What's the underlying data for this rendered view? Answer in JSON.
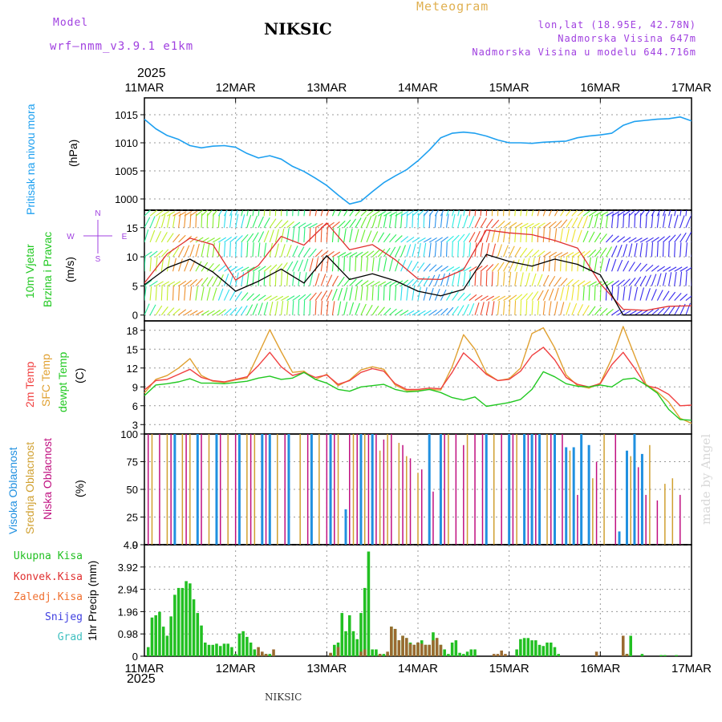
{
  "header": {
    "model_label": "Model",
    "model_name": "wrf–nmm_v3.9.1  e1km",
    "city": "NIKSIC",
    "title": "Meteogram",
    "lonlat": "lon,lat (18.95E, 42.78N)",
    "elevation": "Nadmorska Visina 647m",
    "model_elevation": "Nadmorska Visina u modelu 644.716m",
    "year": "2025",
    "footer_city": "NIKSIC",
    "signature": "made by Angel"
  },
  "colors": {
    "pressure": "#1ea0f0",
    "wind_speed": "#000000",
    "gust": "#e03030",
    "temp2m": "#f04040",
    "sfc_temp": "#e0a030",
    "dewpoint": "#20c820",
    "high_cloud": "#2090e0",
    "mid_cloud": "#d0a030",
    "low_cloud": "#c01080",
    "total_precip": "#22c022",
    "conv_precip": "#e03030",
    "frozen": "#f07030",
    "snow": "#4040e0",
    "hail": "#40c0c0",
    "header_purple": "#a040e0",
    "title_gold": "#e0b050"
  },
  "chart_data": [
    {
      "type": "line",
      "panel": "pressure",
      "labels": [
        "Pritisak na nivou mora",
        "(hPa)"
      ],
      "x_ticks": [
        "11MAR",
        "12MAR",
        "13MAR",
        "14MAR",
        "15MAR",
        "16MAR",
        "17MAR"
      ],
      "x": [
        0,
        3,
        6,
        9,
        12,
        15,
        18,
        21,
        24,
        27,
        30,
        33,
        36,
        39,
        42,
        45,
        48,
        51,
        54,
        57,
        60,
        63,
        66,
        69,
        72,
        75,
        78,
        81,
        84,
        87,
        90,
        93,
        96,
        99,
        102,
        105,
        108,
        111,
        114,
        117,
        120,
        123,
        126,
        129,
        132,
        135,
        138,
        141,
        144
      ],
      "x_unit": "hours from 11MAR 00UTC",
      "y_ticks": [
        1000,
        1005,
        1010,
        1015
      ],
      "ylim": [
        998,
        1018
      ],
      "series": [
        {
          "name": "Pritisak na nivou mora",
          "values": [
            1014.2,
            1012.5,
            1011.3,
            1010.6,
            1009.5,
            1009.1,
            1009.4,
            1009.5,
            1009.2,
            1008.1,
            1007.3,
            1007.7,
            1007.1,
            1005.8,
            1004.9,
            1003.7,
            1002.4,
            1000.7,
            999.1,
            999.6,
            1001.3,
            1002.9,
            1004.1,
            1005.2,
            1006.8,
            1008.7,
            1010.9,
            1011.7,
            1011.9,
            1011.7,
            1011.2,
            1010.5,
            1010.0,
            1010.0,
            1009.9,
            1010.1,
            1010.2,
            1010.3,
            1010.9,
            1011.2,
            1011.4,
            1011.7,
            1013.1,
            1013.8,
            1014.0,
            1014.2,
            1014.3,
            1014.6,
            1013.9
          ]
        }
      ]
    },
    {
      "type": "line",
      "panel": "wind",
      "labels": [
        "10m Vjetar",
        "Brzina i Pravac",
        "(m/s)"
      ],
      "direction_legend": [
        "N",
        "W",
        "E",
        "S"
      ],
      "x": [
        0,
        6,
        12,
        18,
        24,
        30,
        36,
        42,
        48,
        54,
        60,
        66,
        72,
        78,
        84,
        90,
        96,
        102,
        108,
        114,
        120,
        126,
        132,
        138,
        144
      ],
      "x_unit": "hours from 11MAR 00UTC",
      "y_ticks": [
        0,
        5,
        10,
        15
      ],
      "ylim": [
        -1,
        18
      ],
      "series": [
        {
          "name": "10m Vjetar Brzina",
          "values": [
            5.2,
            8.1,
            9.6,
            7.4,
            4.1,
            5.8,
            7.9,
            5.5,
            10.2,
            6.1,
            7.1,
            5.9,
            4.1,
            3.3,
            4.4,
            10.4,
            9.2,
            8.4,
            9.6,
            8.7,
            6.9,
            null,
            null,
            null,
            null
          ]
        },
        {
          "name": "Udari",
          "values": [
            5.5,
            10.5,
            13.2,
            12.1,
            6.0,
            8.5,
            13.5,
            12.0,
            15.8,
            11.2,
            12.1,
            9.5,
            6.2,
            6.1,
            7.8,
            14.6,
            14.1,
            13.8,
            12.8,
            11.5,
            5.4,
            1.0,
            0.8,
            1.5,
            1.6
          ]
        }
      ]
    },
    {
      "type": "line",
      "panel": "temperature",
      "labels": [
        "2m Temp",
        "SFC Temp",
        "dewpt Temp",
        "(C)"
      ],
      "x": [
        0,
        3,
        6,
        9,
        12,
        15,
        18,
        21,
        24,
        27,
        30,
        33,
        36,
        39,
        42,
        45,
        48,
        51,
        54,
        57,
        60,
        63,
        66,
        69,
        72,
        75,
        78,
        81,
        84,
        87,
        90,
        93,
        96,
        99,
        102,
        105,
        108,
        111,
        114,
        117,
        120,
        123,
        126,
        129,
        132,
        135,
        138,
        141,
        144
      ],
      "x_unit": "hours from 11MAR 00UTC",
      "y_ticks": [
        3,
        6,
        9,
        12,
        15,
        18
      ],
      "ylim": [
        1.5,
        19.5
      ],
      "series": [
        {
          "name": "2m Temp",
          "values": [
            8.5,
            10.0,
            10.2,
            11.0,
            11.8,
            10.5,
            10.0,
            9.8,
            10.2,
            10.6,
            12.4,
            14.5,
            12.2,
            10.8,
            11.3,
            10.5,
            10.9,
            9.4,
            10.0,
            11.3,
            11.9,
            11.5,
            9.5,
            8.6,
            8.6,
            8.8,
            8.7,
            11.3,
            14.4,
            12.8,
            11.0,
            10.0,
            10.2,
            11.5,
            14.0,
            15.3,
            13.3,
            10.5,
            9.4,
            9.0,
            9.5,
            12.5,
            14.5,
            12.0,
            9.2,
            8.8,
            7.8,
            6.0,
            6.1
          ]
        },
        {
          "name": "SFC Temp",
          "values": [
            8.0,
            10.2,
            10.8,
            12.0,
            13.5,
            10.8,
            9.9,
            9.7,
            10.1,
            10.4,
            14.2,
            18.1,
            14.6,
            11.3,
            11.5,
            10.2,
            11.0,
            9.2,
            10.1,
            11.7,
            12.2,
            11.8,
            9.3,
            8.4,
            8.4,
            8.6,
            8.5,
            12.2,
            17.3,
            15.0,
            11.2,
            10.0,
            10.3,
            12.0,
            17.5,
            18.4,
            15.2,
            10.9,
            9.2,
            8.8,
            9.6,
            13.5,
            18.6,
            14.0,
            9.4,
            8.2,
            6.6,
            4.0,
            3.2
          ]
        },
        {
          "name": "dewpt Temp",
          "values": [
            7.6,
            9.3,
            9.5,
            9.8,
            10.3,
            9.6,
            9.6,
            9.5,
            9.7,
            9.9,
            10.4,
            10.7,
            10.2,
            10.4,
            11.3,
            10.2,
            9.6,
            8.6,
            8.3,
            9.0,
            9.2,
            9.4,
            8.6,
            8.2,
            8.3,
            8.6,
            8.1,
            7.3,
            6.9,
            7.4,
            5.9,
            6.2,
            6.5,
            7.0,
            8.6,
            11.4,
            10.6,
            9.5,
            9.1,
            9.0,
            9.3,
            9.0,
            10.2,
            10.4,
            9.3,
            8.0,
            5.4,
            3.8,
            3.7
          ]
        }
      ]
    },
    {
      "type": "bar",
      "panel": "clouds",
      "labels": [
        "Visoka Oblacnost",
        "Srednja Oblacnost",
        "Niska Oblacnost",
        "(%)"
      ],
      "x_unit": "hours from 11MAR 00UTC",
      "y_ticks": [
        0,
        25,
        50,
        75,
        100
      ],
      "ylim": [
        0,
        100
      ],
      "series": [
        {
          "name": "Visoka Oblacnost",
          "x": [
            8,
            14,
            19,
            25,
            31,
            33,
            38,
            44,
            49,
            53,
            57,
            60,
            75,
            78,
            90,
            96,
            100,
            102,
            104,
            108,
            111,
            113,
            115,
            117,
            125,
            127,
            129,
            131
          ],
          "values": [
            100,
            100,
            100,
            100,
            100,
            100,
            100,
            100,
            100,
            32,
            100,
            100,
            100,
            100,
            100,
            100,
            100,
            100,
            100,
            100,
            88,
            88,
            100,
            90,
            12,
            85,
            100,
            82
          ]
        },
        {
          "name": "Srednja Oblacnost",
          "x": [
            2,
            6,
            10,
            12,
            17,
            22,
            27,
            29,
            35,
            41,
            46,
            51,
            55,
            58,
            62,
            64,
            67,
            69,
            72,
            80,
            85,
            92,
            98,
            106,
            112,
            118,
            121,
            128,
            133,
            137,
            139
          ],
          "values": [
            100,
            100,
            100,
            100,
            100,
            100,
            100,
            100,
            100,
            100,
            100,
            100,
            100,
            100,
            85,
            100,
            92,
            80,
            65,
            100,
            100,
            100,
            100,
            100,
            85,
            60,
            100,
            80,
            90,
            55,
            60
          ]
        },
        {
          "name": "Niska Oblacnost",
          "x": [
            1,
            4,
            7,
            11,
            15,
            20,
            24,
            28,
            32,
            37,
            43,
            48,
            50,
            54,
            56,
            59,
            61,
            63,
            65,
            68,
            70,
            73,
            76,
            79,
            82,
            84,
            87,
            89,
            94,
            97,
            101,
            103,
            107,
            110,
            114,
            119,
            124,
            130,
            132,
            135,
            141
          ],
          "values": [
            100,
            100,
            100,
            100,
            100,
            100,
            100,
            100,
            100,
            100,
            100,
            100,
            100,
            100,
            100,
            100,
            100,
            95,
            100,
            90,
            78,
            68,
            48,
            100,
            100,
            90,
            100,
            100,
            100,
            100,
            100,
            100,
            100,
            100,
            45,
            75,
            100,
            70,
            45,
            40,
            45
          ]
        }
      ]
    },
    {
      "type": "bar",
      "panel": "precip",
      "labels": [
        "Ukupna Kisa",
        "Konvek.Kisa",
        "Zaledj.Kisa",
        "Snijeg",
        "Grad",
        "1hr Precip (mm)"
      ],
      "x_unit": "hours from 11MAR 00UTC",
      "y_ticks": [
        0,
        0.98,
        1.96,
        2.94,
        3.92,
        4.9
      ],
      "ylim": [
        0,
        4.9
      ],
      "series": [
        {
          "name": "Ukupna Kisa",
          "x": [
            1,
            2,
            3,
            4,
            5,
            6,
            7,
            8,
            9,
            10,
            11,
            12,
            13,
            14,
            15,
            16,
            17,
            18,
            19,
            20,
            21,
            22,
            23,
            24,
            25,
            26,
            27,
            28,
            29,
            30,
            31,
            32,
            33,
            34,
            49,
            50,
            51,
            52,
            53,
            54,
            55,
            56,
            57,
            58,
            59,
            60,
            61,
            62,
            63,
            64,
            65,
            66,
            67,
            68,
            69,
            70,
            71,
            72,
            73,
            74,
            75,
            76,
            77,
            78,
            79,
            80,
            81,
            82,
            83,
            84,
            85,
            86,
            87,
            98,
            99,
            100,
            101,
            102,
            103,
            104,
            105,
            106,
            107,
            108,
            109,
            126,
            127,
            128,
            131,
            136,
            137,
            140
          ],
          "values": [
            0.4,
            1.7,
            1.8,
            1.95,
            1.3,
            0.9,
            1.75,
            2.7,
            3.0,
            3.0,
            3.3,
            3.2,
            2.5,
            1.9,
            1.35,
            0.6,
            0.5,
            0.5,
            0.55,
            0.45,
            0.55,
            0.55,
            0.4,
            0.1,
            1.0,
            1.1,
            0.85,
            0.6,
            0.3,
            0.1,
            0.1,
            0.1,
            0.1,
            0.05,
            0.1,
            0.5,
            0.6,
            1.9,
            1.1,
            1.8,
            1.1,
            0.75,
            1.9,
            3.0,
            4.6,
            0.3,
            0.3,
            0.1,
            0.1,
            0.1,
            1.3,
            1.2,
            0.7,
            0.9,
            0.8,
            0.6,
            0.5,
            0.6,
            0.7,
            0.5,
            0.5,
            1.05,
            0.8,
            0.5,
            0.3,
            0.1,
            0.6,
            0.7,
            0.15,
            0.1,
            0.2,
            0.3,
            0.3,
            0.3,
            0.75,
            0.8,
            0.8,
            0.7,
            0.7,
            0.5,
            0.45,
            0.6,
            0.6,
            0.4,
            0.1,
            0.25,
            0.1,
            0.9,
            0.1,
            0.05,
            0.05,
            0.05
          ]
        },
        {
          "name": "Konvek.Kisa",
          "x": [
            30,
            31,
            32,
            34,
            49,
            51,
            57,
            58,
            62,
            64,
            65,
            66,
            67,
            68,
            69,
            70,
            71,
            72,
            73,
            74,
            75,
            76,
            77,
            78,
            92,
            93,
            94,
            95,
            119,
            126,
            127
          ],
          "values": [
            0.4,
            0.2,
            0.1,
            0.3,
            0.15,
            0.4,
            0.2,
            0.3,
            0.1,
            0.2,
            1.3,
            1.2,
            0.7,
            0.9,
            0.8,
            0.55,
            0.5,
            0.6,
            0.55,
            0.5,
            0.5,
            0.7,
            0.8,
            0.5,
            0.1,
            0.1,
            0.25,
            0.1,
            0.2,
            0.9,
            0.1
          ]
        }
      ]
    }
  ]
}
